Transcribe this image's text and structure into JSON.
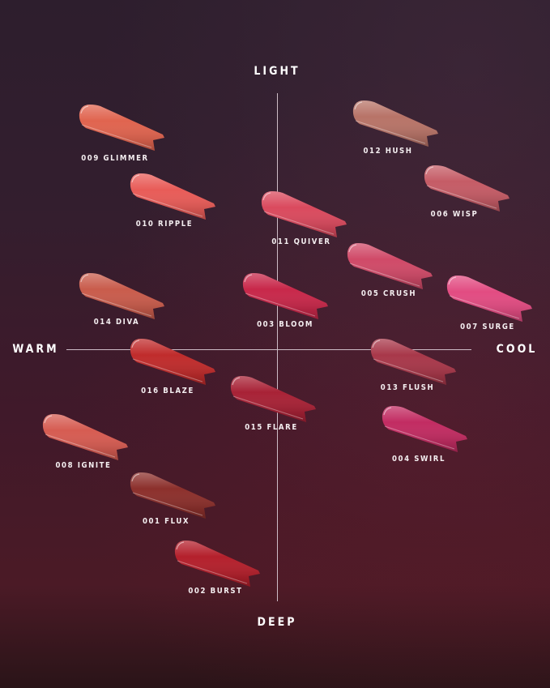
{
  "axes": {
    "top": "LIGHT",
    "bottom": "DEEP",
    "left": "WARM",
    "right": "COOL"
  },
  "shades": [
    {
      "name": "009 GLIMMER",
      "color": "#e0644f"
    },
    {
      "name": "012 HUSH",
      "color": "#b87468"
    },
    {
      "name": "010 RIPPLE",
      "color": "#e85c58"
    },
    {
      "name": "006 WISP",
      "color": "#c55c66"
    },
    {
      "name": "011 QUIVER",
      "color": "#da4a5e"
    },
    {
      "name": "005 CRUSH",
      "color": "#d04a68"
    },
    {
      "name": "014 DIVA",
      "color": "#c95c4c"
    },
    {
      "name": "003 BLOOM",
      "color": "#c8284a"
    },
    {
      "name": "007 SURGE",
      "color": "#e24c82"
    },
    {
      "name": "016 BLAZE",
      "color": "#c02c2c"
    },
    {
      "name": "013 FLUSH",
      "color": "#a8384a"
    },
    {
      "name": "015 FLARE",
      "color": "#a82236"
    },
    {
      "name": "004 SWIRL",
      "color": "#c22c62"
    },
    {
      "name": "008 IGNITE",
      "color": "#d65c52"
    },
    {
      "name": "001 FLUX",
      "color": "#8c302c"
    },
    {
      "name": "002 BURST",
      "color": "#b4202c"
    }
  ]
}
